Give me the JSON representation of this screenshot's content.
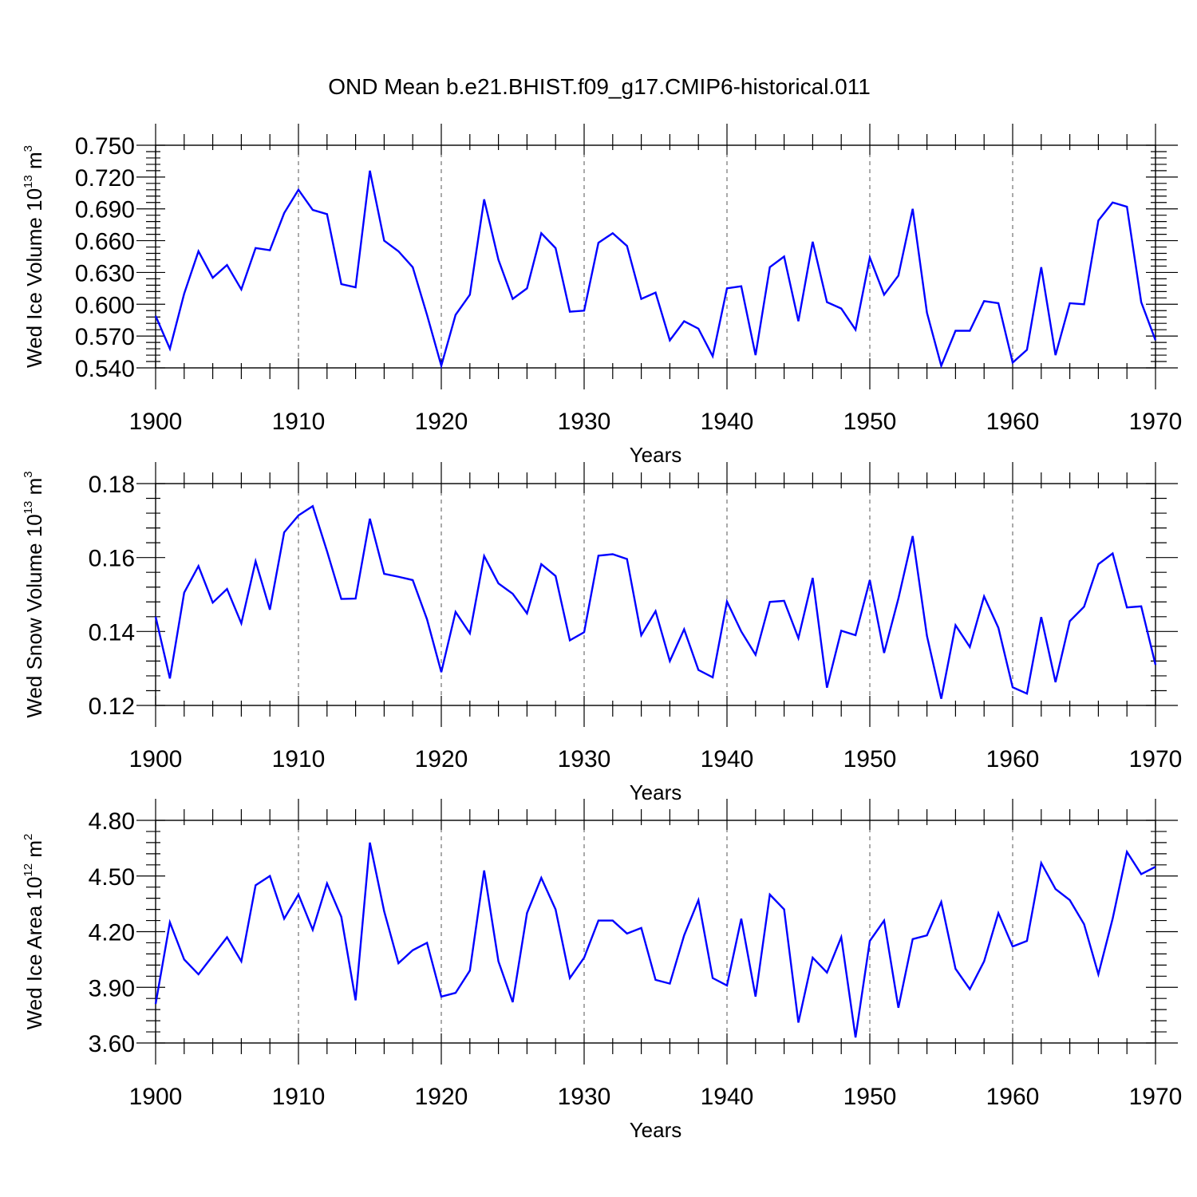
{
  "title": "OND Mean b.e21.BHIST.f09_g17.CMIP6-historical.011",
  "line_color": "#0000ff",
  "chart_data": [
    {
      "type": "line",
      "ylabel": "Wed Ice Volume 10",
      "ylabel_exp": "13",
      "ylabel_unit": "m",
      "ylabel_unit_exp": "3",
      "xlabel": "Years",
      "xlim": [
        1900,
        1970
      ],
      "ylim": [
        0.54,
        0.75
      ],
      "xticks": [
        "1900",
        "1910",
        "1920",
        "1930",
        "1940",
        "1950",
        "1960",
        "1970"
      ],
      "yticks": [
        "0.540",
        "0.570",
        "0.600",
        "0.630",
        "0.660",
        "0.690",
        "0.720",
        "0.750"
      ],
      "x_start": 1900,
      "values": [
        0.589,
        0.558,
        0.61,
        0.65,
        0.625,
        0.637,
        0.614,
        0.653,
        0.651,
        0.686,
        0.708,
        0.689,
        0.685,
        0.619,
        0.616,
        0.726,
        0.66,
        0.65,
        0.635,
        0.59,
        0.542,
        0.59,
        0.609,
        0.699,
        0.642,
        0.605,
        0.615,
        0.667,
        0.653,
        0.593,
        0.594,
        0.658,
        0.667,
        0.655,
        0.605,
        0.611,
        0.566,
        0.584,
        0.577,
        0.551,
        0.615,
        0.617,
        0.552,
        0.635,
        0.645,
        0.584,
        0.659,
        0.602,
        0.596,
        0.576,
        0.644,
        0.609,
        0.627,
        0.69,
        0.592,
        0.542,
        0.575,
        0.575,
        0.603,
        0.601,
        0.545,
        0.557,
        0.635,
        0.552,
        0.601,
        0.6,
        0.679,
        0.696,
        0.692,
        0.602,
        0.566
      ]
    },
    {
      "type": "line",
      "ylabel": "Wed Snow Volume 10",
      "ylabel_exp": "13",
      "ylabel_unit": "m",
      "ylabel_unit_exp": "3",
      "xlabel": "Years",
      "xlim": [
        1900,
        1970
      ],
      "ylim": [
        0.12,
        0.18
      ],
      "xticks": [
        "1900",
        "1910",
        "1920",
        "1930",
        "1940",
        "1950",
        "1960",
        "1970"
      ],
      "yticks": [
        "0.12",
        "0.14",
        "0.16",
        "0.18"
      ],
      "x_start": 1900,
      "values": [
        0.144,
        0.1273,
        0.1505,
        0.1577,
        0.1478,
        0.1515,
        0.1422,
        0.159,
        0.1459,
        0.1668,
        0.1714,
        0.1739,
        0.1617,
        0.1488,
        0.1489,
        0.1705,
        0.1556,
        0.1548,
        0.1539,
        0.1433,
        0.129,
        0.1453,
        0.1395,
        0.1604,
        0.153,
        0.1502,
        0.1449,
        0.1582,
        0.155,
        0.1376,
        0.1398,
        0.1605,
        0.1609,
        0.1596,
        0.139,
        0.1455,
        0.132,
        0.1406,
        0.1296,
        0.1276,
        0.1481,
        0.14,
        0.1337,
        0.148,
        0.1483,
        0.1382,
        0.1545,
        0.1248,
        0.1402,
        0.139,
        0.1539,
        0.1342,
        0.1489,
        0.1658,
        0.1388,
        0.1218,
        0.1417,
        0.1358,
        0.1495,
        0.141,
        0.1249,
        0.1232,
        0.1439,
        0.1263,
        0.1428,
        0.1467,
        0.1582,
        0.1611,
        0.1465,
        0.1468,
        0.131
      ]
    },
    {
      "type": "line",
      "ylabel": "Wed Ice Area 10",
      "ylabel_exp": "12",
      "ylabel_unit": "m",
      "ylabel_unit_exp": "2",
      "xlabel": "Years",
      "xlim": [
        1900,
        1970
      ],
      "ylim": [
        3.6,
        4.8
      ],
      "xticks": [
        "1900",
        "1910",
        "1920",
        "1930",
        "1940",
        "1950",
        "1960",
        "1970"
      ],
      "yticks": [
        "3.60",
        "3.90",
        "4.20",
        "4.50",
        "4.80"
      ],
      "x_start": 1900,
      "values": [
        3.81,
        4.25,
        4.05,
        3.97,
        4.07,
        4.17,
        4.04,
        4.45,
        4.5,
        4.27,
        4.4,
        4.21,
        4.46,
        4.28,
        3.83,
        4.68,
        4.31,
        4.03,
        4.1,
        4.14,
        3.85,
        3.87,
        3.99,
        4.53,
        4.04,
        3.82,
        4.3,
        4.49,
        4.32,
        3.95,
        4.06,
        4.26,
        4.26,
        4.19,
        4.22,
        3.94,
        3.92,
        4.18,
        4.37,
        3.95,
        3.91,
        4.27,
        3.85,
        4.4,
        4.32,
        3.71,
        4.06,
        3.98,
        4.17,
        3.63,
        4.15,
        4.26,
        3.79,
        4.16,
        4.18,
        4.36,
        4.0,
        3.89,
        4.04,
        4.3,
        4.12,
        4.15,
        4.57,
        4.43,
        4.37,
        4.24,
        3.97,
        4.27,
        4.63,
        4.51,
        4.55
      ]
    }
  ]
}
